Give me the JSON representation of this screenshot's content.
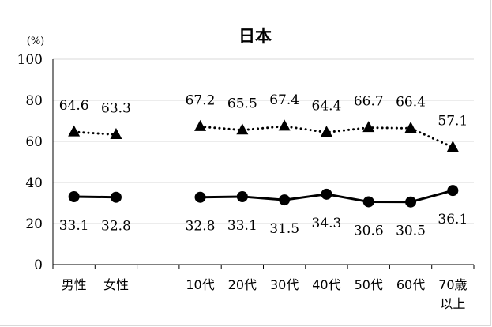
{
  "chart_data": {
    "type": "line",
    "title": "日本",
    "unit_label": "(%)",
    "categories": [
      "男性",
      "女性",
      "",
      "10代",
      "20代",
      "30代",
      "40代",
      "50代",
      "60代",
      "70歳\n以上"
    ],
    "ylim": [
      0,
      100
    ],
    "yticks": [
      0,
      20,
      40,
      60,
      80,
      100
    ],
    "grid": true,
    "series": [
      {
        "style": "dotted",
        "marker": "triangle",
        "color": "#000000",
        "segments": [
          {
            "x": [
              "男性",
              "女性"
            ],
            "values": [
              64.6,
              63.3
            ],
            "labels": [
              "64.6",
              "63.3"
            ]
          },
          {
            "x": [
              "10代",
              "20代",
              "30代",
              "40代",
              "50代",
              "60代",
              "70歳\n以上"
            ],
            "values": [
              67.2,
              65.5,
              67.4,
              64.4,
              66.7,
              66.4,
              57.1
            ],
            "labels": [
              "67.2",
              "65.5",
              "67.4",
              "64.4",
              "66.7",
              "66.4",
              "57.1"
            ]
          }
        ]
      },
      {
        "style": "solid",
        "marker": "circle",
        "color": "#000000",
        "segments": [
          {
            "x": [
              "男性",
              "女性"
            ],
            "values": [
              33.1,
              32.8
            ],
            "labels": [
              "33.1",
              "32.8"
            ]
          },
          {
            "x": [
              "10代",
              "20代",
              "30代",
              "40代",
              "50代",
              "60代",
              "70歳\n以上"
            ],
            "values": [
              32.8,
              33.1,
              31.5,
              34.3,
              30.6,
              30.5,
              36.1
            ],
            "labels": [
              "32.8",
              "33.1",
              "31.5",
              "34.3",
              "30.6",
              "30.5",
              "36.1"
            ]
          }
        ]
      }
    ]
  }
}
